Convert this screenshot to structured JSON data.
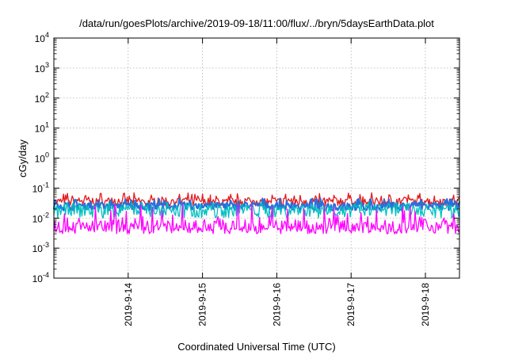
{
  "chart_data": {
    "type": "line",
    "title": "/data/run/goesPlots/archive/2019-09-18/11:00/flux/../bryn/5daysEarthData.plot",
    "xlabel": "Coordinated Universal Time (UTC)",
    "ylabel": "cGy/day",
    "yscale": "log",
    "ylim": [
      0.0001,
      10000
    ],
    "y_ticks": [
      {
        "exp": "4",
        "value": 10000
      },
      {
        "exp": "3",
        "value": 1000
      },
      {
        "exp": "2",
        "value": 100
      },
      {
        "exp": "1",
        "value": 10
      },
      {
        "exp": "0",
        "value": 1
      },
      {
        "exp": "-1",
        "value": 0.1
      },
      {
        "exp": "-2",
        "value": 0.01
      },
      {
        "exp": "-3",
        "value": 0.001
      },
      {
        "exp": "-4",
        "value": 0.0001
      }
    ],
    "y_tick_base": "10",
    "xlim": [
      "2019-09-13T00:00",
      "2019-09-18T11:00"
    ],
    "x_ticks": [
      {
        "label": "2019-9-14",
        "value": "2019-09-14T00:00"
      },
      {
        "label": "2019-9-15",
        "value": "2019-09-15T00:00"
      },
      {
        "label": "2019-9-16",
        "value": "2019-09-16T00:00"
      },
      {
        "label": "2019-9-17",
        "value": "2019-09-17T00:00"
      },
      {
        "label": "2019-9-18",
        "value": "2019-09-18T00:00"
      }
    ],
    "grid": true,
    "series": [
      {
        "color": "#e41a1c",
        "typical_value": 0.04,
        "min": 0.025,
        "max": 0.07
      },
      {
        "color": "#2a6fdb",
        "typical_value": 0.028,
        "min": 0.018,
        "max": 0.045
      },
      {
        "color": "#00bfbf",
        "typical_value": 0.022,
        "min": 0.01,
        "max": 0.035
      },
      {
        "color": "#ff00ff",
        "typical_value": 0.006,
        "min": 0.003,
        "max": 0.03
      }
    ]
  }
}
